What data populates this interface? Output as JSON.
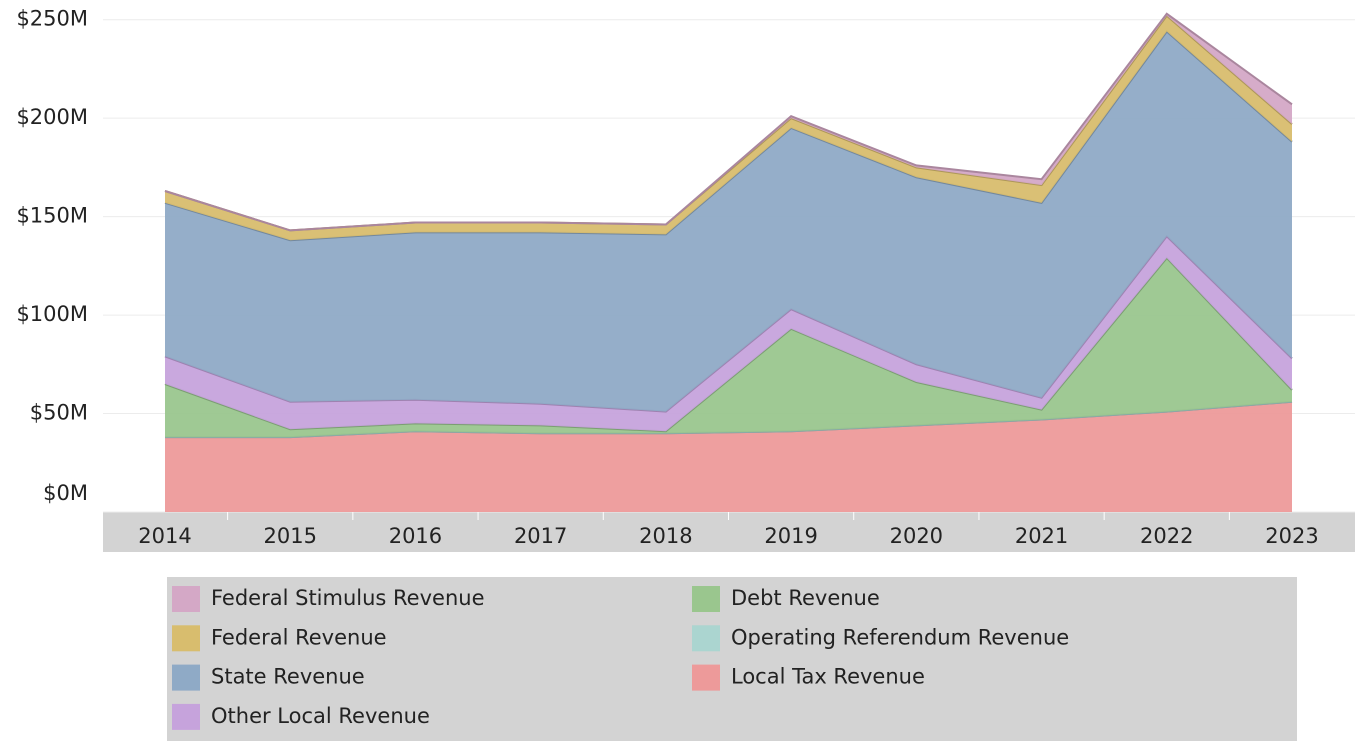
{
  "chart_data": {
    "type": "area",
    "stacked": true,
    "categories": [
      "2014",
      "2015",
      "2016",
      "2017",
      "2018",
      "2019",
      "2020",
      "2021",
      "2022",
      "2023"
    ],
    "series": [
      {
        "name": "Federal Stimulus Revenue",
        "color": "#d4a8c6",
        "values": [
          0,
          0,
          0,
          0,
          0,
          1,
          1,
          3,
          1,
          10
        ]
      },
      {
        "name": "Federal Revenue",
        "color": "#d8bd6e",
        "values": [
          6,
          5,
          5,
          5,
          5,
          5,
          5,
          9,
          8,
          9
        ]
      },
      {
        "name": "State Revenue",
        "color": "#8faac6",
        "values": [
          78,
          82,
          85,
          87,
          90,
          92,
          95,
          99,
          104,
          110
        ]
      },
      {
        "name": "Other Local Revenue",
        "color": "#c6a3dc",
        "values": [
          14,
          14,
          12,
          11,
          10,
          10,
          9,
          6,
          11,
          16
        ]
      },
      {
        "name": "Debt Revenue",
        "color": "#9ac68e",
        "values": [
          27,
          4,
          4,
          4,
          1,
          52,
          22,
          5,
          78,
          6
        ]
      },
      {
        "name": "Operating Referendum Revenue",
        "color": "#abd5d0",
        "values": [
          0,
          0,
          0,
          0,
          0,
          0,
          0,
          0,
          0,
          0
        ]
      },
      {
        "name": "Local Tax Revenue",
        "color": "#ed9a9a",
        "values": [
          38,
          38,
          41,
          40,
          40,
          41,
          44,
          47,
          51,
          56
        ]
      }
    ],
    "ylim": [
      0,
      260
    ],
    "yticks": [
      {
        "value": 0,
        "label": "$0M"
      },
      {
        "value": 50,
        "label": "$50M"
      },
      {
        "value": 100,
        "label": "$100M"
      },
      {
        "value": 150,
        "label": "$150M"
      },
      {
        "value": 200,
        "label": "$200M"
      },
      {
        "value": 250,
        "label": "$250M"
      }
    ],
    "grid": true
  }
}
